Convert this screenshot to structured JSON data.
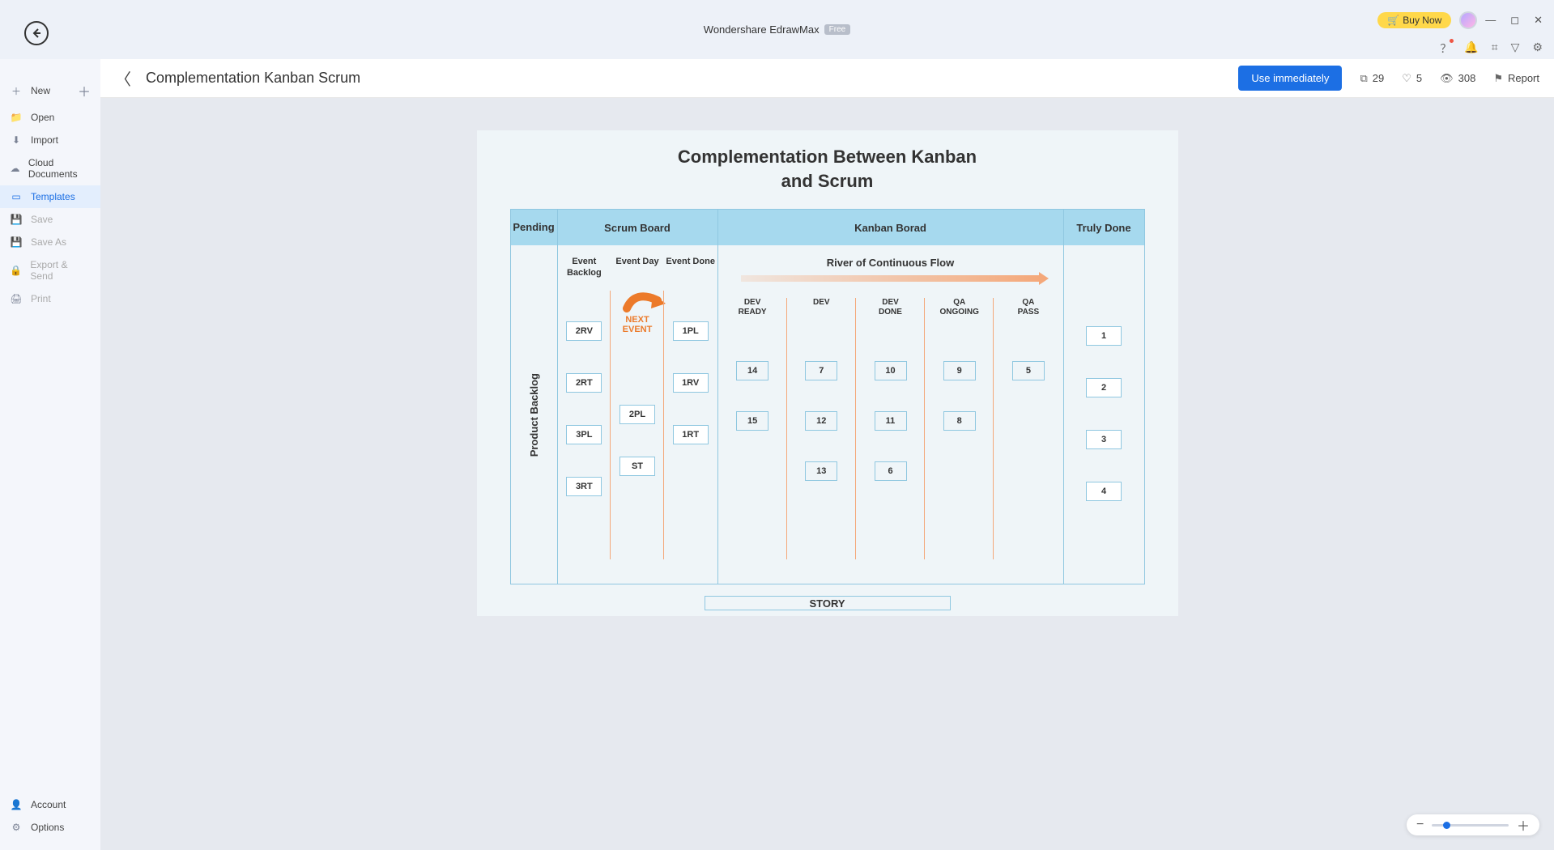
{
  "app": {
    "title": "Wondershare EdrawMax",
    "badge": "Free",
    "buy": "Buy Now"
  },
  "sidebar": {
    "items": [
      {
        "icon": "＋",
        "label": "New"
      },
      {
        "icon": "📁",
        "label": "Open"
      },
      {
        "icon": "⬇",
        "label": "Import"
      },
      {
        "icon": "☁",
        "label": "Cloud Documents"
      },
      {
        "icon": "▭",
        "label": "Templates",
        "selected": true
      },
      {
        "icon": "💾",
        "label": "Save",
        "disabled": true
      },
      {
        "icon": "💾",
        "label": "Save As",
        "disabled": true
      },
      {
        "icon": "🔒",
        "label": "Export & Send",
        "disabled": true
      },
      {
        "icon": "🖨",
        "label": "Print",
        "disabled": true
      }
    ],
    "bottom": [
      {
        "icon": "👤",
        "label": "Account"
      },
      {
        "icon": "⚙",
        "label": "Options"
      }
    ]
  },
  "page": {
    "title": "Complementation Kanban Scrum",
    "use": "Use immediately",
    "copies": "29",
    "likes": "5",
    "views": "308",
    "report": "Report"
  },
  "diagram": {
    "title_l1": "Complementation Between Kanban",
    "title_l2": "and Scrum",
    "head": {
      "pending": "Pending",
      "scrum": "Scrum Board",
      "kanban": "Kanban Borad",
      "done": "Truly Done"
    },
    "pending_label": "Product Backlog",
    "scrum_cols": [
      {
        "label": "Event Backlog",
        "cards": [
          "2RV",
          "2RT",
          "3PL",
          "3RT"
        ]
      },
      {
        "label": "Event Day",
        "next": "NEXT EVENT",
        "cards": [
          "",
          "2PL",
          "ST",
          ""
        ]
      },
      {
        "label": "Event Done",
        "cards": [
          "1PL",
          "1RV",
          "1RT",
          ""
        ]
      }
    ],
    "river": "River of Continuous Flow",
    "kanban_cols": [
      {
        "label": "DEV READY",
        "cards": [
          "14",
          "15"
        ]
      },
      {
        "label": "DEV",
        "cards": [
          "7",
          "12",
          "13"
        ]
      },
      {
        "label": "DEV DONE",
        "cards": [
          "10",
          "11",
          "6"
        ]
      },
      {
        "label": "QA ONGOING",
        "cards": [
          "9",
          "8"
        ]
      },
      {
        "label": "QA PASS",
        "cards": [
          "5"
        ]
      }
    ],
    "done_cards": [
      "1",
      "2",
      "3",
      "4"
    ],
    "story": "STORY",
    "colors": {
      "header_fill": "#a6d9ee",
      "border": "#8fc7e0",
      "canvas": "#eff5f8",
      "accent_arrow": "#f4a87a",
      "next_event": "#ec7a2a"
    }
  }
}
